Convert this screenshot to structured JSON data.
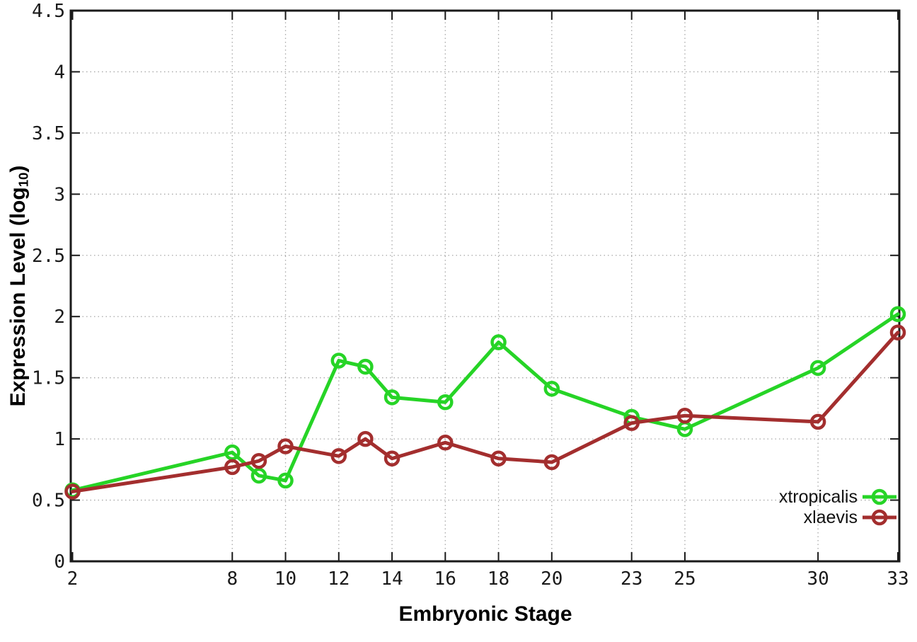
{
  "chart_data": {
    "type": "line",
    "x": [
      2,
      8,
      9,
      10,
      12,
      13,
      14,
      16,
      18,
      20,
      23,
      25,
      30,
      33
    ],
    "series": [
      {
        "name": "xtropicalis",
        "color": "#26d426",
        "values": [
          0.58,
          0.89,
          0.7,
          0.66,
          1.64,
          1.59,
          1.34,
          1.3,
          1.79,
          1.41,
          1.18,
          1.08,
          1.58,
          2.02
        ]
      },
      {
        "name": "xlaevis",
        "color": "#a32e2e",
        "values": [
          0.57,
          0.77,
          0.82,
          0.94,
          0.86,
          1.0,
          0.84,
          0.97,
          0.84,
          0.81,
          1.13,
          1.19,
          1.14,
          1.87
        ]
      }
    ],
    "xlabel": "Embryonic Stage",
    "ylabel_parts": {
      "pre": "Expression Level (log",
      "sub": "10",
      "post": ")"
    },
    "xlim": [
      2,
      33
    ],
    "ylim": [
      0,
      4.5
    ],
    "x_ticks": [
      2,
      8,
      10,
      12,
      14,
      16,
      18,
      20,
      23,
      25,
      30,
      33
    ],
    "y_ticks": [
      0,
      0.5,
      1,
      1.5,
      2,
      2.5,
      3,
      3.5,
      4,
      4.5
    ],
    "grid": true,
    "grid_style": "dotted",
    "legend_position": "bottom-right",
    "marker": "open-circle",
    "axis_color": "#1a1a1a",
    "grid_color": "#a8a8a8",
    "tick_label_color": "#1a1a1a"
  }
}
